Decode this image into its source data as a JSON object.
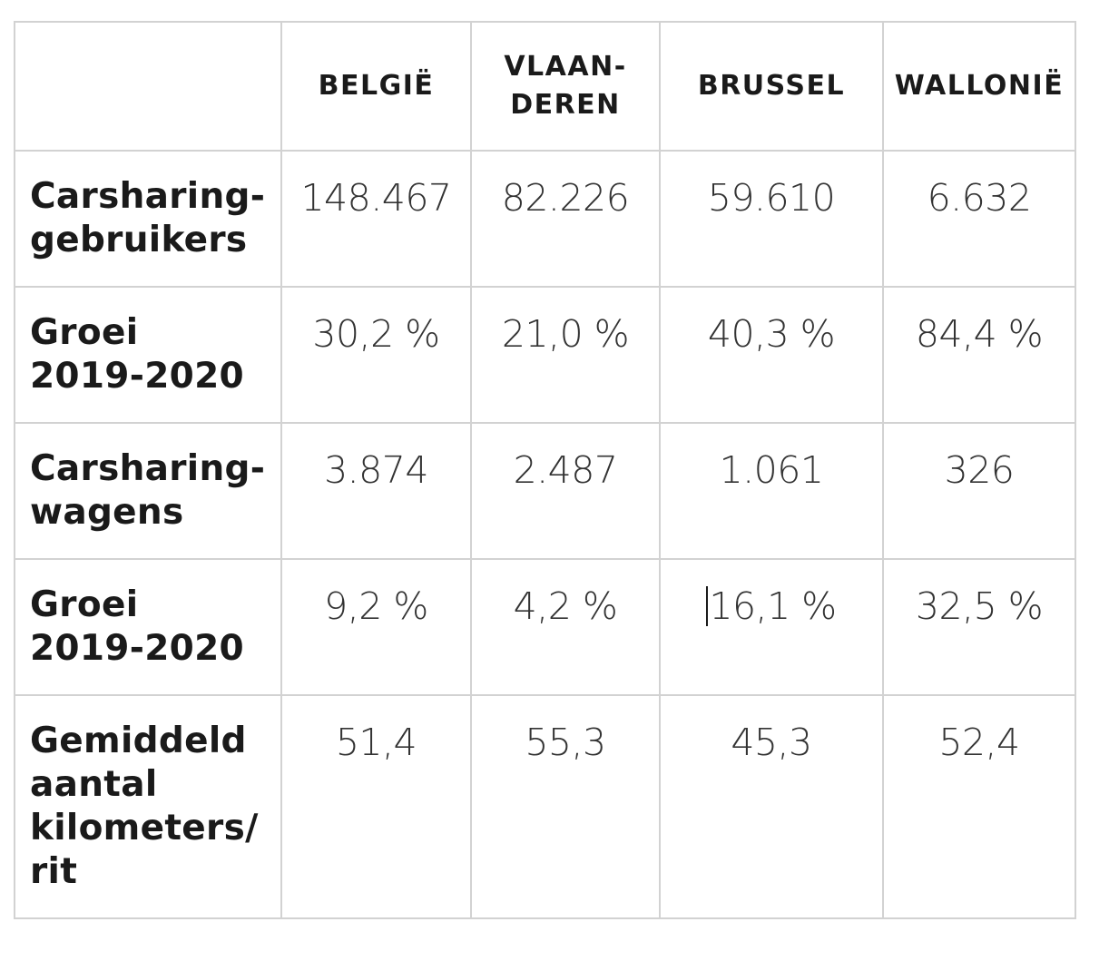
{
  "table": {
    "columns": [
      "BELGIË",
      "VLAAN-\nDEREN",
      "BRUSSEL",
      "WALLONIË"
    ],
    "rows": [
      {
        "label": "Carsharing-\ngebruikers",
        "values": [
          "148.467",
          "82.226",
          "59.610",
          "6.632"
        ]
      },
      {
        "label": "Groei\n2019-2020",
        "values": [
          "30,2 %",
          "21,0 %",
          "40,3 %",
          "84,4 %"
        ]
      },
      {
        "label": "Carsharing-\nwagens",
        "values": [
          "3.874",
          "2.487",
          "1.061",
          "326"
        ]
      },
      {
        "label": "Groei\n2019-2020",
        "values": [
          "9,2 %",
          "4,2 %",
          "16,1 %",
          "32,5 %"
        ]
      },
      {
        "label": "Gemiddeld\naantal\nkilometers/\nrit",
        "values": [
          "51,4",
          "55,3",
          "45,3",
          "52,4"
        ]
      }
    ]
  }
}
